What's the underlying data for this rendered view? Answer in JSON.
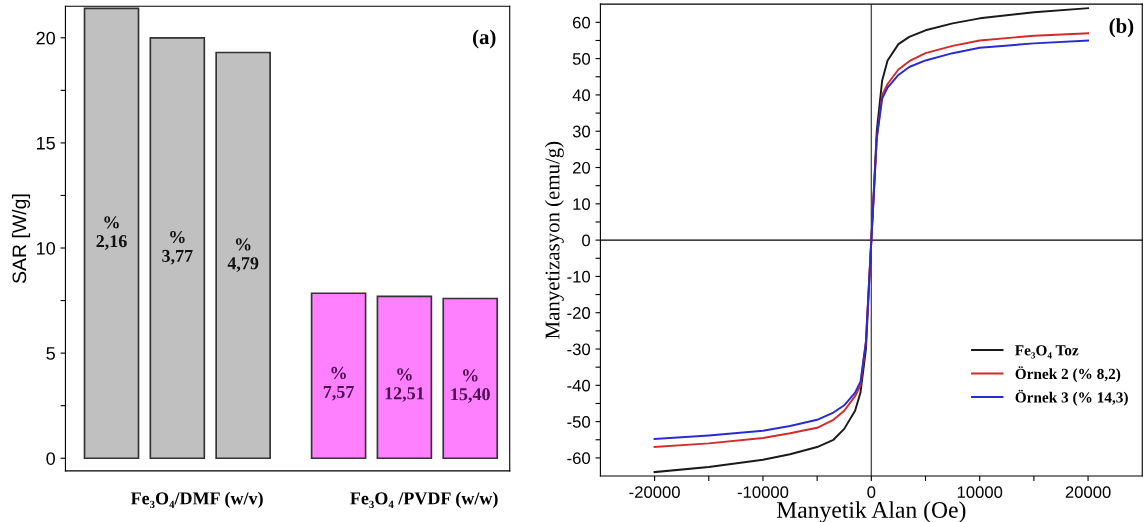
{
  "chart_data": [
    {
      "type": "bar",
      "ylabel": "SAR [W/g]",
      "categories": [
        "%\n2,16",
        "%\n3,77",
        "%\n4,79",
        "%\n7,57",
        "%\n12,51",
        "%\n15,40"
      ],
      "values": [
        21.4,
        20.0,
        19.3,
        7.85,
        7.7,
        7.6
      ],
      "colors": [
        "#c0c0c0",
        "#c0c0c0",
        "#c0c0c0",
        "#ff80ff",
        "#ff80ff",
        "#ff80ff"
      ],
      "ylim": [
        -0.6,
        21.5
      ],
      "yticks": [
        0,
        {
          "value": 2.5,
          "label": null
        },
        5,
        {
          "value": 7.5,
          "label": null
        },
        10,
        {
          "value": 12.5,
          "label": null
        },
        15,
        {
          "value": 17.5,
          "label": null
        },
        20
      ],
      "tick_labels": "y",
      "annotations": [
        "Fe₃O₄/DMF (w/v)",
        "Fe₃O₄ /PVDF (w/w)",
        "(a)"
      ]
    },
    {
      "type": "line",
      "xlabel": "Manyetik Alan (Oe)",
      "ylabel": "Manyetizasyon (emu/g)",
      "xlim": [
        -25000,
        25000
      ],
      "ylim": [
        -65,
        65
      ],
      "xticks": [
        -20000,
        {
          "value": -15000,
          "label": null
        },
        -10000,
        {
          "value": -5000,
          "label": null
        },
        0,
        {
          "value": 5000,
          "label": null
        },
        10000,
        {
          "value": 15000,
          "label": null
        },
        20000
      ],
      "yticks": [
        -60,
        {
          "value": -55,
          "label": null
        },
        -50,
        {
          "value": -45,
          "label": null
        },
        -40,
        {
          "value": -35,
          "label": null
        },
        -30,
        {
          "value": -25,
          "label": null
        },
        -20,
        {
          "value": -15,
          "label": null
        },
        -10,
        {
          "value": -5,
          "label": null
        },
        0,
        {
          "value": 5,
          "label": null
        },
        10,
        {
          "value": 15,
          "label": null
        },
        20,
        {
          "value": 25,
          "label": null
        },
        30,
        {
          "value": 35,
          "label": null
        },
        40,
        {
          "value": 45,
          "label": null
        },
        50,
        {
          "value": 55,
          "label": null
        },
        60
      ],
      "x": [
        -20000,
        -15000,
        -10000,
        -7500,
        -5000,
        -3500,
        -2500,
        -1500,
        -1000,
        -500,
        -200,
        0,
        200,
        500,
        1000,
        1500,
        2500,
        3500,
        5000,
        7500,
        10000,
        15000,
        20000
      ],
      "series": [
        {
          "name": "Fe₃O₄ Toz",
          "color": "#1a1a1a",
          "values": [
            -63.9,
            -62.5,
            -60.5,
            -59,
            -57,
            -55,
            -52,
            -47,
            -42,
            -30,
            -12,
            0,
            12,
            30,
            44,
            49.5,
            54,
            56,
            57.8,
            59.7,
            61.1,
            62.8,
            63.9
          ]
        },
        {
          "name": "Örnek 2 (% 8,2)",
          "color": "#d42a2a",
          "values": [
            -57,
            -56,
            -54.5,
            -53.2,
            -51.7,
            -49.5,
            -47,
            -43,
            -40,
            -28,
            -11,
            0,
            11,
            28,
            40,
            43,
            47,
            49.3,
            51.5,
            53.5,
            55,
            56.3,
            57
          ]
        },
        {
          "name": "Örnek 3 (% 14,3)",
          "color": "#2a2ad4",
          "values": [
            -54.8,
            -53.8,
            -52.5,
            -51.2,
            -49.5,
            -47.5,
            -45.5,
            -42,
            -39,
            -28,
            -11,
            0,
            11,
            28,
            39,
            42,
            45.5,
            47.7,
            49.5,
            51.5,
            53,
            54.2,
            55
          ]
        }
      ],
      "ref_lines": [
        {
          "axis": "x",
          "value": 0,
          "color": "#505050"
        },
        {
          "axis": "y",
          "value": 0,
          "color": "#000000"
        }
      ],
      "legend": "lower right",
      "grid": false,
      "annotations": [
        "(b)"
      ]
    }
  ]
}
